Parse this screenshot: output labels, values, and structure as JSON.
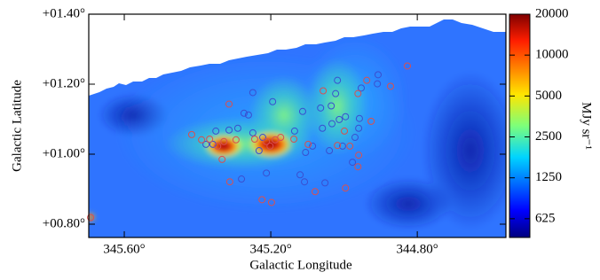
{
  "chart_data": {
    "type": "scatter",
    "x_label": "Galactic Longitude",
    "y_label": "Galactic Latitude",
    "xlim": [
      345.697,
      344.558
    ],
    "ylim": [
      0.762,
      1.4
    ],
    "xticks": [
      {
        "value": 345.6,
        "label": "345.60°"
      },
      {
        "value": 345.2,
        "label": "345.20°"
      },
      {
        "value": 344.8,
        "label": "344.80°"
      }
    ],
    "yticks": [
      {
        "value": 0.8,
        "label": "+00.80°"
      },
      {
        "value": 1.0,
        "label": "+01.00°"
      },
      {
        "value": 1.2,
        "label": "+01.20°"
      },
      {
        "value": 1.4,
        "label": "+01.40°"
      }
    ],
    "series": [
      {
        "color": "#3a4fd0",
        "x": [
          345.249,
          345.195,
          345.314,
          345.273,
          345.261,
          345.29,
          345.249,
          345.113,
          345.018,
          345.023,
          345.064,
          345.035,
          345.013,
          345.033,
          344.996,
          344.958,
          344.953,
          344.907,
          344.909,
          345.105,
          345.086,
          345.04,
          345.004,
          345.35,
          345.358,
          345.135,
          345.12,
          345.108,
          345.052,
          345.212,
          345.28,
          345.377,
          345.222,
          345.232,
          344.96,
          344.97,
          344.977,
          345.059
        ],
        "y": [
          1.176,
          1.15,
          1.069,
          1.117,
          1.112,
          1.074,
          1.061,
          1.122,
          1.211,
          1.173,
          1.132,
          1.138,
          1.099,
          1.087,
          1.107,
          1.102,
          1.189,
          1.227,
          1.201,
          1.005,
          1.023,
          1.01,
          1.023,
          1.066,
          1.028,
          1.066,
          0.941,
          0.921,
          0.918,
          0.946,
          0.929,
          1.028,
          1.048,
          1.01,
          1.074,
          1.048,
          0.977,
          1.074
        ]
      },
      {
        "color": "#d85050",
        "x": [
          345.314,
          345.416,
          345.389,
          345.367,
          345.328,
          345.295,
          345.312,
          345.333,
          345.202,
          345.188,
          345.173,
          345.224,
          345.198,
          345.079,
          344.996,
          344.96,
          344.962,
          344.984,
          344.999,
          345.018,
          345.057,
          344.962,
          344.938,
          344.926,
          344.873,
          344.827,
          345.137,
          345.098,
          345.212,
          345.244,
          345.345,
          345.692
        ],
        "y": [
          1.143,
          1.056,
          1.041,
          1.043,
          1.036,
          1.041,
          0.921,
          0.985,
          1.023,
          1.041,
          1.048,
          0.87,
          0.862,
          0.893,
          0.903,
          0.997,
          0.964,
          1.023,
          1.066,
          1.025,
          1.181,
          1.173,
          1.211,
          1.094,
          1.194,
          1.252,
          1.043,
          1.028,
          1.036,
          1.043,
          1.023,
          0.819
        ]
      }
    ],
    "colorbar": {
      "label": "MJy sr⁻¹",
      "scale": "log",
      "lim": [
        455,
        20000
      ],
      "ticks": [
        625,
        1250,
        2500,
        5000,
        10000,
        20000
      ]
    }
  }
}
